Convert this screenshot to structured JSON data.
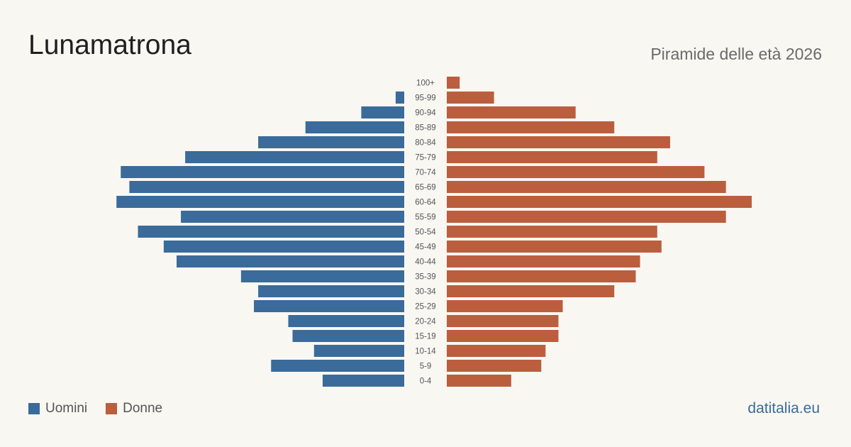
{
  "header": {
    "title": "Lunamatrona",
    "subtitle": "Piramide delle età 2026"
  },
  "legend": {
    "men_label": "Uomini",
    "women_label": "Donne"
  },
  "footer": {
    "brand": "datitalia.eu"
  },
  "colors": {
    "men": "#3a6b9b",
    "women": "#bb5e3e",
    "label_text": "#555555",
    "background": "#f9f7f2"
  },
  "chart_data": {
    "type": "bar",
    "orientation": "horizontal-pyramid",
    "categories": [
      "100+",
      "95-99",
      "90-94",
      "85-89",
      "80-84",
      "75-79",
      "70-74",
      "65-69",
      "60-64",
      "55-59",
      "50-54",
      "45-49",
      "40-44",
      "35-39",
      "30-34",
      "25-29",
      "20-24",
      "15-19",
      "10-14",
      "5-9",
      "0-4"
    ],
    "series": [
      {
        "name": "Uomini",
        "values": [
          0,
          2,
          10,
          23,
          34,
          51,
          66,
          64,
          67,
          52,
          62,
          56,
          53,
          38,
          34,
          35,
          27,
          26,
          21,
          31,
          19
        ]
      },
      {
        "name": "Donne",
        "values": [
          3,
          11,
          30,
          39,
          52,
          49,
          60,
          65,
          71,
          65,
          49,
          50,
          45,
          44,
          39,
          27,
          26,
          26,
          23,
          22,
          15
        ]
      }
    ],
    "xlim": [
      0,
      71
    ],
    "grid": false,
    "legend_position": "bottom-left"
  }
}
